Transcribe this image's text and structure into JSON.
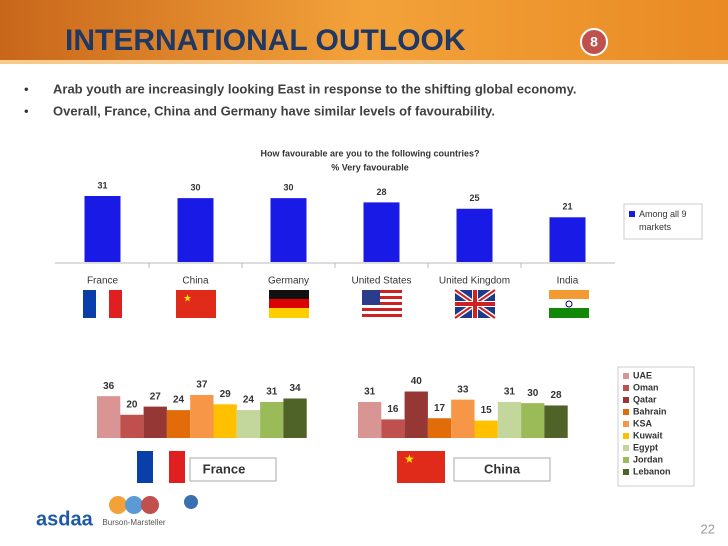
{
  "header": {
    "title": "INTERNATIONAL OUTLOOK",
    "badge": "8",
    "bullets": [
      "Arab youth are increasingly looking East in response to the shifting global economy.",
      "Overall, France, China and Germany have similar levels of favourability."
    ]
  },
  "chart_data": [
    {
      "type": "bar",
      "title": "How favourable are you to the following countries?",
      "subtitle": "% Very favourable",
      "categories": [
        "France",
        "China",
        "Germany",
        "United States",
        "United Kingdom",
        "India"
      ],
      "series": [
        {
          "name": "Among all 9 markets",
          "color": "#1a1ae6",
          "values": [
            31,
            30,
            30,
            28,
            25,
            21
          ]
        }
      ]
    },
    {
      "type": "bar",
      "label": "France",
      "categories": [
        "UAE",
        "Oman",
        "Qatar",
        "Bahrain",
        "KSA",
        "Kuwait",
        "Egypt",
        "Jordan",
        "Lebanon"
      ],
      "colors": [
        "#d99594",
        "#c0504d",
        "#953735",
        "#e36c0a",
        "#f79646",
        "#ffc000",
        "#c3d69b",
        "#9bbb59",
        "#4f6228"
      ],
      "values": [
        36,
        20,
        27,
        24,
        37,
        29,
        24,
        31,
        34
      ]
    },
    {
      "type": "bar",
      "label": "China",
      "categories": [
        "UAE",
        "Oman",
        "Qatar",
        "Bahrain",
        "KSA",
        "Kuwait",
        "Egypt",
        "Jordan",
        "Lebanon"
      ],
      "colors": [
        "#d99594",
        "#c0504d",
        "#953735",
        "#e36c0a",
        "#f79646",
        "#ffc000",
        "#c3d69b",
        "#9bbb59",
        "#4f6228"
      ],
      "values": [
        31,
        16,
        40,
        17,
        33,
        15,
        31,
        30,
        28
      ]
    }
  ],
  "footer": {
    "logo": "asdaa",
    "partner": "Burson-Marsteller",
    "page": "22"
  }
}
